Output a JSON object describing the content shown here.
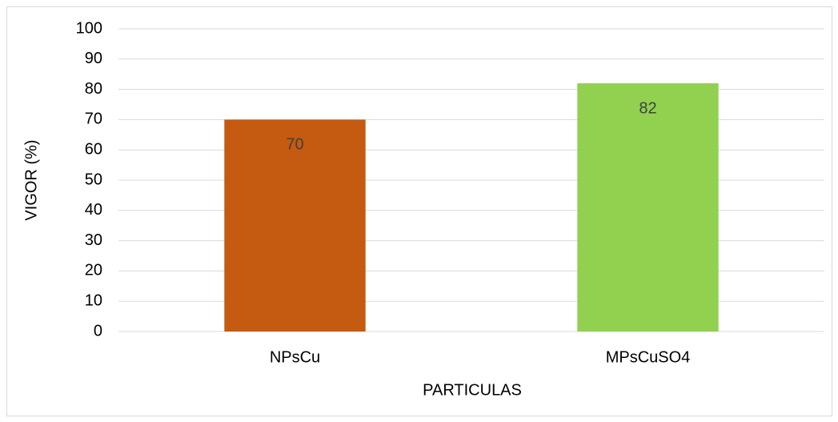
{
  "chart_data": {
    "type": "bar",
    "categories": [
      "NPsCu",
      "MPsCuSO4"
    ],
    "values": [
      70,
      82
    ],
    "colors": [
      "#c55a11",
      "#92d050"
    ],
    "xlabel": "PARTICULAS",
    "ylabel": "VIGOR (%)",
    "ylim": [
      0,
      100
    ],
    "yticks": [
      0,
      10,
      20,
      30,
      40,
      50,
      60,
      70,
      80,
      90,
      100
    ],
    "grid": true
  }
}
